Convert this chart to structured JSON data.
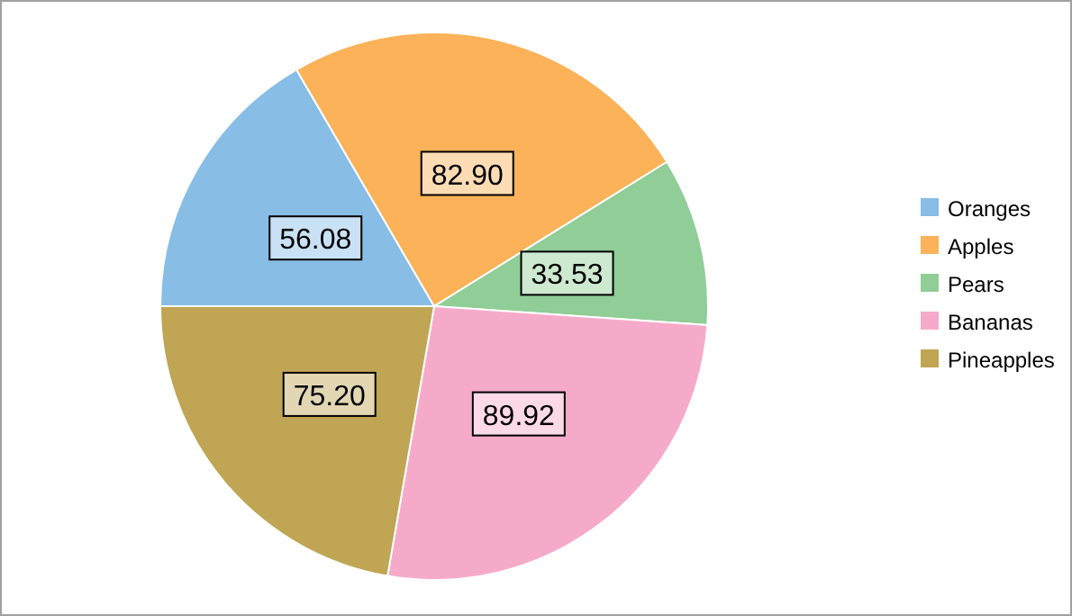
{
  "chart_data": {
    "type": "pie",
    "categories": [
      "Oranges",
      "Apples",
      "Pears",
      "Bananas",
      "Pineapples"
    ],
    "values": [
      56.08,
      82.9,
      33.53,
      89.92,
      75.2
    ],
    "colors": [
      "#88bde6",
      "#fbb258",
      "#90cd97",
      "#f6aac9",
      "#bfa554"
    ],
    "value_labels": [
      "56.08",
      "82.90",
      "33.53",
      "89.92",
      "75.20"
    ],
    "legend": "right"
  }
}
